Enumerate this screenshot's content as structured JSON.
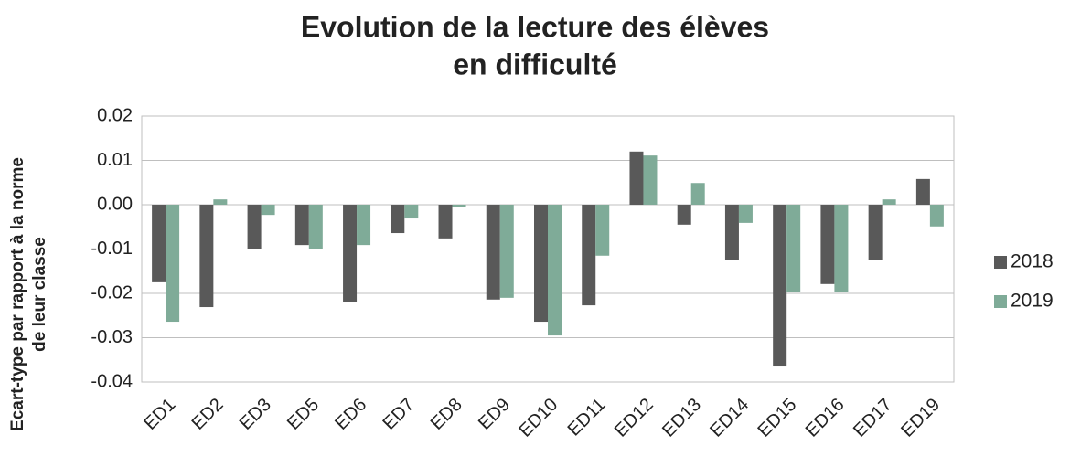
{
  "chart_data": {
    "type": "bar",
    "title": [
      "Evolution de la lecture des élèves",
      "en difficulté"
    ],
    "y_label": [
      "Ecart-type par rapport à la norme",
      "de leur classe"
    ],
    "categories": [
      "ED1",
      "ED2",
      "ED3",
      "ED5",
      "ED6",
      "ED7",
      "ED8",
      "ED9",
      "ED10",
      "ED11",
      "ED12",
      "ED13",
      "ED14",
      "ED15",
      "ED16",
      "ED17",
      "ED19"
    ],
    "series": [
      {
        "name": "2018",
        "color": "#595959",
        "values": [
          -0.0175,
          -0.0231,
          -0.0101,
          -0.0091,
          -0.0219,
          -0.0064,
          -0.0076,
          -0.0214,
          -0.0264,
          -0.0227,
          0.012,
          -0.0045,
          -0.0124,
          -0.0365,
          -0.0179,
          -0.0124,
          0.0058
        ]
      },
      {
        "name": "2019",
        "color": "#7fab98",
        "values": [
          -0.0264,
          0.0012,
          -0.0023,
          -0.0101,
          -0.0091,
          -0.0031,
          -0.0006,
          -0.021,
          -0.0295,
          -0.0115,
          0.0111,
          0.0049,
          -0.0041,
          -0.0196,
          -0.0196,
          0.0012,
          -0.0049
        ]
      }
    ],
    "ylim": [
      -0.04,
      0.02
    ],
    "yticks": [
      -0.04,
      -0.03,
      -0.02,
      -0.01,
      {
        "value": 0,
        "label": "0.00"
      },
      0.01,
      0.02
    ],
    "grid": true,
    "legend": "right"
  }
}
